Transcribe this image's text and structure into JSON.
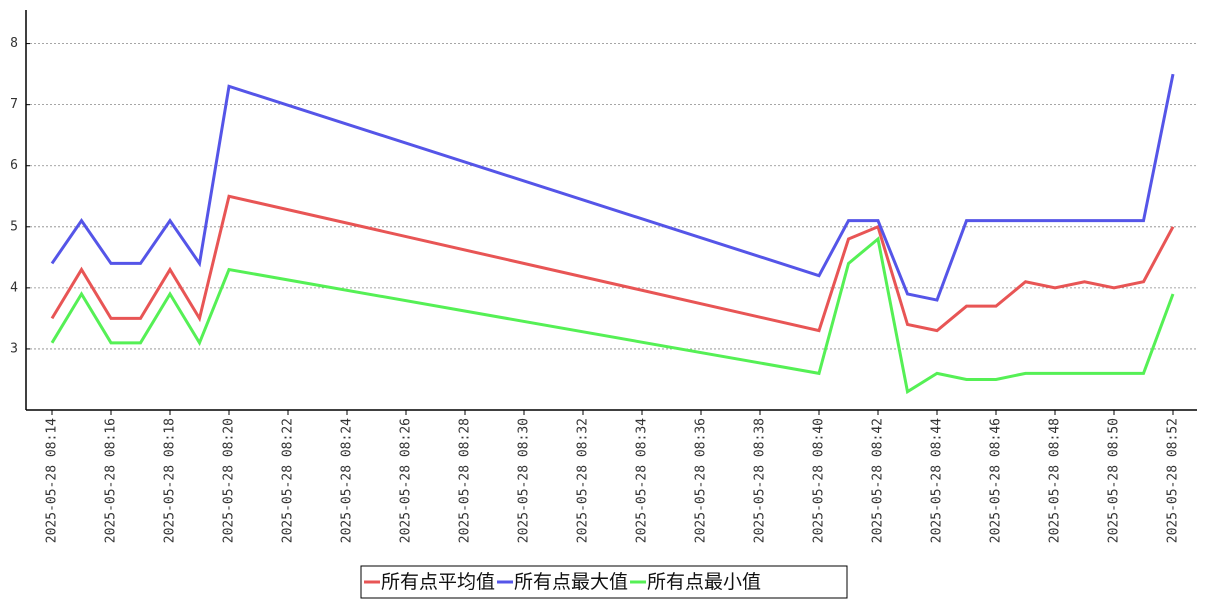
{
  "chart_data": {
    "type": "line",
    "x": [
      "2025-05-28 08:14",
      "2025-05-28 08:15",
      "2025-05-28 08:16",
      "2025-05-28 08:17",
      "2025-05-28 08:18",
      "2025-05-28 08:19",
      "2025-05-28 08:20",
      "2025-05-28 08:40",
      "2025-05-28 08:41",
      "2025-05-28 08:42",
      "2025-05-28 08:43",
      "2025-05-28 08:44",
      "2025-05-28 08:45",
      "2025-05-28 08:46",
      "2025-05-28 08:47",
      "2025-05-28 08:48",
      "2025-05-28 08:49",
      "2025-05-28 08:50",
      "2025-05-28 08:51",
      "2025-05-28 08:52"
    ],
    "series": [
      {
        "name": "所有点平均值",
        "color": "#e85555",
        "values": [
          3.5,
          4.3,
          3.5,
          3.5,
          4.3,
          3.5,
          5.5,
          3.3,
          4.8,
          5.0,
          3.4,
          3.3,
          3.7,
          3.7,
          4.1,
          4.0,
          4.1,
          4.0,
          4.1,
          5.0
        ]
      },
      {
        "name": "所有点最大值",
        "color": "#5555e8",
        "values": [
          4.4,
          5.1,
          4.4,
          4.4,
          5.1,
          4.4,
          7.3,
          4.2,
          5.1,
          5.1,
          3.9,
          3.8,
          5.1,
          5.1,
          5.1,
          5.1,
          5.1,
          5.1,
          5.1,
          7.5
        ]
      },
      {
        "name": "所有点最小值",
        "color": "#55f055",
        "values": [
          3.1,
          3.9,
          3.1,
          3.1,
          3.9,
          3.1,
          4.3,
          2.6,
          4.4,
          4.8,
          2.3,
          2.6,
          2.5,
          2.5,
          2.6,
          2.6,
          2.6,
          2.6,
          2.6,
          3.9
        ]
      }
    ],
    "xlim": [
      "2025-05-28 08:14",
      "2025-05-28 08:52"
    ],
    "xticks": [
      "2025-05-28 08:14",
      "2025-05-28 08:16",
      "2025-05-28 08:18",
      "2025-05-28 08:20",
      "2025-05-28 08:22",
      "2025-05-28 08:24",
      "2025-05-28 08:26",
      "2025-05-28 08:28",
      "2025-05-28 08:30",
      "2025-05-28 08:32",
      "2025-05-28 08:34",
      "2025-05-28 08:36",
      "2025-05-28 08:38",
      "2025-05-28 08:40",
      "2025-05-28 08:42",
      "2025-05-28 08:44",
      "2025-05-28 08:46",
      "2025-05-28 08:48",
      "2025-05-28 08:50",
      "2025-05-28 08:52"
    ],
    "ylim": [
      2.0,
      8.55
    ],
    "yticks": [
      3,
      4,
      5,
      6,
      7,
      8
    ],
    "grid": true,
    "legend": "bottom"
  }
}
